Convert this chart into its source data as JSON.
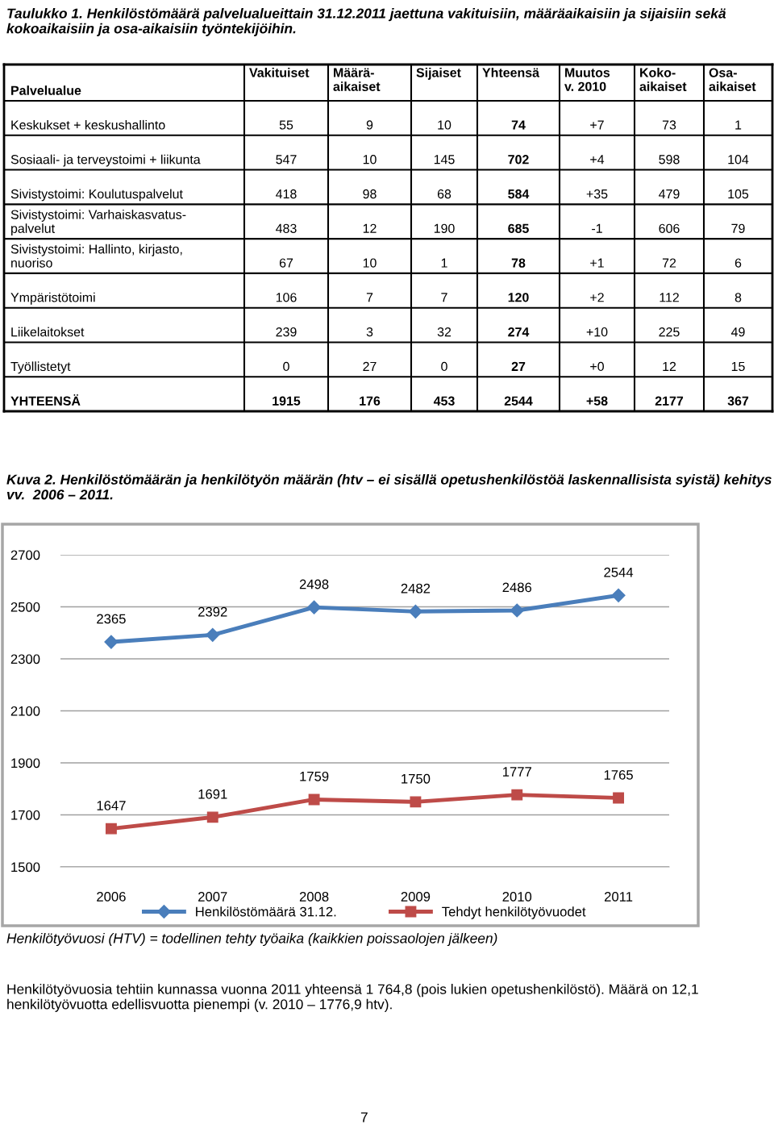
{
  "chart_data": [
    {
      "type": "heatmap",
      "title": "Taulukko 1. Henkilöstömäärä palvelualueittain 31.12.2011 jaettuna vakituisiin, määräaikaisiin ja sijaisiin sekä kokoaikaisiin ja osa-aikaisiin työntekijöihin.",
      "ylabel": "Palvelualue",
      "categories": [
        "Vakituiset",
        "Määrä-\naikaiset",
        "Sijaiset",
        "Yhteensä",
        "Muutos\nv. 2010",
        "Koko-\naikaiset",
        "Osa-\naikaiset"
      ],
      "y_categories": [
        "Keskukset + keskushallinto",
        "Sosiaali- ja terveystoimi + liikunta",
        "Sivistystoimi: Koulutuspalvelut",
        "Sivistystoimi: Varhaiskasvatus-\npalvelut",
        "Sivistystoimi: Hallinto, kirjasto,\nnuoriso",
        "Ympäristötoimi",
        "Liikelaitokset",
        "Työllistetyt",
        "YHTEENSÄ"
      ],
      "cells": [
        [
          55,
          9,
          10,
          74,
          7,
          73,
          1
        ],
        [
          547,
          10,
          145,
          702,
          4,
          598,
          104
        ],
        [
          418,
          98,
          68,
          584,
          35,
          479,
          105
        ],
        [
          483,
          12,
          190,
          685,
          -1,
          606,
          79
        ],
        [
          67,
          10,
          1,
          78,
          1,
          72,
          6
        ],
        [
          106,
          7,
          7,
          120,
          2,
          112,
          8
        ],
        [
          239,
          3,
          32,
          274,
          10,
          225,
          49
        ],
        [
          0,
          27,
          0,
          27,
          0,
          12,
          15
        ],
        [
          1915,
          176,
          453,
          2544,
          58,
          2177,
          367
        ]
      ],
      "cell_labels": [
        [
          "55",
          "9",
          "10",
          "74",
          "+7",
          "73",
          "1"
        ],
        [
          "547",
          "10",
          "145",
          "702",
          "+4",
          "598",
          "104"
        ],
        [
          "418",
          "98",
          "68",
          "584",
          "+35",
          "479",
          "105"
        ],
        [
          "483",
          "12",
          "190",
          "685",
          "-1",
          "606",
          "79"
        ],
        [
          "67",
          "10",
          "1",
          "78",
          "+1",
          "72",
          "6"
        ],
        [
          "106",
          "7",
          "7",
          "120",
          "+2",
          "112",
          "8"
        ],
        [
          "239",
          "3",
          "32",
          "274",
          "+10",
          "225",
          "49"
        ],
        [
          "0",
          "27",
          "0",
          "27",
          "+0",
          "12",
          "15"
        ],
        [
          "1915",
          "176",
          "453",
          "2544",
          "+58",
          "2177",
          "367"
        ]
      ]
    },
    {
      "type": "line",
      "title": "Kuva 2. Henkilöstömäärän ja henkilötyön määrän (htv – ei sisällä opetushenkilöstöä laskennallisista syistä) kehitys vv.  2006 – 2011.",
      "categories": [
        "2006",
        "2007",
        "2008",
        "2009",
        "2010",
        "2011"
      ],
      "series": [
        {
          "name": "Henkilöstömäärä 31.12.",
          "color": "#4a7ebb",
          "marker": "diamond",
          "values": [
            2365,
            2392,
            2498,
            2482,
            2486,
            2544
          ]
        },
        {
          "name": "Tehdyt henkilötyövuodet",
          "color": "#be4b48",
          "marker": "square",
          "values": [
            1647,
            1691,
            1759,
            1750,
            1777,
            1765
          ]
        }
      ],
      "ylim": [
        1500,
        2700
      ],
      "yticks": [
        1500,
        1700,
        1900,
        2100,
        2300,
        2500,
        2700
      ],
      "grid": "y",
      "legend": "bottom",
      "data_labels": true,
      "annotations": [
        "Henkilötyövuosi (HTV) = todellinen tehty työaika (kaikkien poissaolojen jälkeen)",
        "Henkilötyövuosia tehtiin kunnassa vuonna 2011 yhteensä 1 764,8 (pois lukien opetushenkilöstö). Määrä on 12,1 henkilötyövuotta edellisvuotta pienempi (v. 2010 – 1776,9 htv).",
        "7"
      ]
    }
  ]
}
